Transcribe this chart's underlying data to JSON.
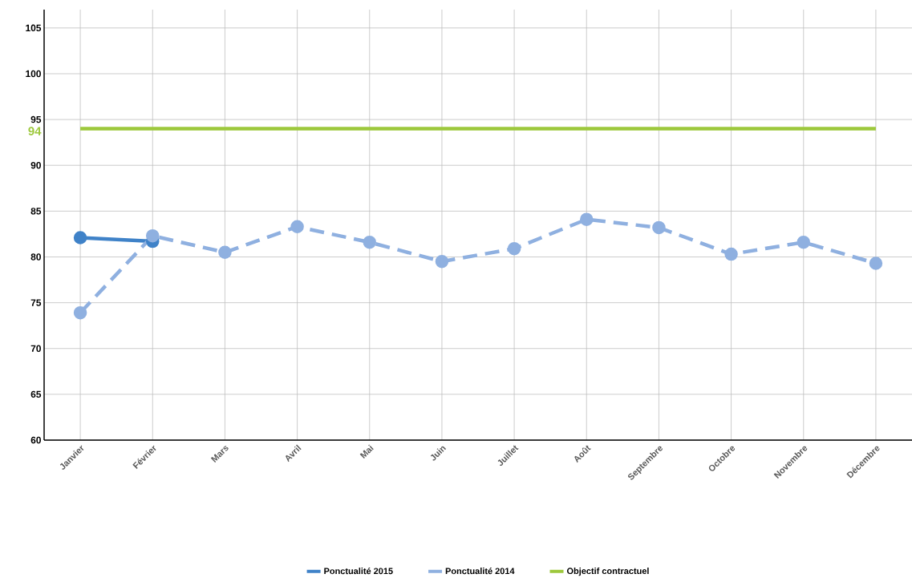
{
  "chart_data": {
    "type": "line",
    "categories": [
      "Janvier",
      "Février",
      "Mars",
      "Avril",
      "Mai",
      "Juin",
      "Juillet",
      "Août",
      "Septembre",
      "Octobre",
      "Novembre",
      "Décembre"
    ],
    "series": [
      {
        "name": "Ponctualité 2015",
        "color": "#3f82c8",
        "line_style": "solid",
        "marker": "circle",
        "values": [
          82.1,
          81.7,
          null,
          null,
          null,
          null,
          null,
          null,
          null,
          null,
          null,
          null
        ]
      },
      {
        "name": "Ponctualité 2014",
        "color": "#8fb0e0",
        "line_style": "dashed",
        "marker": "circle",
        "values": [
          73.9,
          82.3,
          80.5,
          83.3,
          81.6,
          79.5,
          80.9,
          84.1,
          83.2,
          80.3,
          81.6,
          79.3
        ]
      },
      {
        "name": "Objectif contractuel",
        "color": "#9dc83c",
        "line_style": "solid",
        "marker": "none",
        "values": [
          94,
          94,
          94,
          94,
          94,
          94,
          94,
          94,
          94,
          94,
          94,
          94
        ]
      }
    ],
    "ylim": [
      60,
      107
    ],
    "yticks": [
      60,
      65,
      70,
      75,
      80,
      85,
      90,
      95,
      100,
      105
    ],
    "annotations": [
      "94"
    ],
    "grid": true,
    "legend": "bottom"
  }
}
